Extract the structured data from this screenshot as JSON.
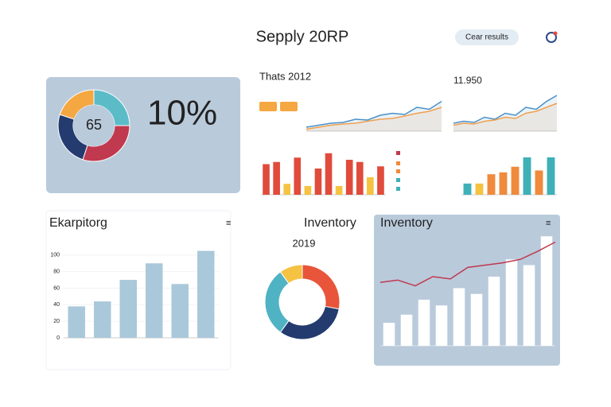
{
  "header": {
    "title": "Sepply 20RP",
    "button": "Cear results"
  },
  "chart_data": [
    {
      "type": "pie",
      "center_label": "65",
      "headline": "10%",
      "values": [
        25,
        30,
        25,
        20
      ],
      "colors": [
        "#5bbcc8",
        "#c0394f",
        "#233b6e",
        "#f5a742"
      ]
    },
    {
      "type": "line",
      "title": "Thats 2012",
      "ylim": [
        0,
        100
      ],
      "series": [
        {
          "color": "#4a90c8",
          "values": [
            10,
            15,
            20,
            22,
            30,
            28,
            40,
            45,
            42,
            60,
            55,
            75
          ]
        },
        {
          "color": "#f0a050",
          "values": [
            5,
            10,
            15,
            18,
            20,
            25,
            30,
            32,
            38,
            45,
            50,
            60
          ]
        }
      ]
    },
    {
      "type": "line",
      "title": "11.950",
      "ylim": [
        0,
        100
      ],
      "series": [
        {
          "color": "#4a90c8",
          "values": [
            20,
            25,
            22,
            35,
            30,
            45,
            40,
            60,
            55,
            75,
            90
          ]
        },
        {
          "color": "#f0a050",
          "values": [
            15,
            20,
            18,
            25,
            28,
            35,
            32,
            45,
            50,
            60,
            70
          ]
        }
      ]
    },
    {
      "type": "bar",
      "ylim": [
        0,
        100
      ],
      "values": [
        70,
        75,
        25,
        85,
        20,
        60,
        95,
        20,
        80,
        75,
        40,
        65
      ],
      "colors": [
        "#e04b3c",
        "#e04b3c",
        "#f5c242",
        "#e04b3c",
        "#f5c242",
        "#e04b3c",
        "#e04b3c",
        "#f5c242",
        "#e04b3c",
        "#e04b3c",
        "#f5c242",
        "#e04b3c"
      ]
    },
    {
      "type": "bar",
      "ylim": [
        0,
        100
      ],
      "values": [
        30,
        30,
        55,
        60,
        75,
        100,
        65,
        100
      ],
      "colors": [
        "#3fb0b8",
        "#f5c242",
        "#f08a3c",
        "#f08a3c",
        "#f08a3c",
        "#3fb0b8",
        "#f08a3c",
        "#3fb0b8"
      ]
    },
    {
      "type": "bar",
      "title": "Ekarpitorg",
      "ylim": [
        0,
        120
      ],
      "yticks": [
        0,
        20,
        40,
        60,
        80,
        100
      ],
      "values": [
        38,
        44,
        70,
        90,
        65,
        105
      ],
      "color": "#a9c8da"
    },
    {
      "type": "pie",
      "title": "Inventory",
      "subtitle": "2019",
      "values": [
        28,
        32,
        30,
        10
      ],
      "colors": [
        "#e8553a",
        "#233b6e",
        "#4fb3c4",
        "#f5c242"
      ]
    },
    {
      "type": "bar",
      "title": "Inventory",
      "ylim": [
        0,
        100
      ],
      "values": [
        20,
        27,
        40,
        35,
        50,
        45,
        60,
        75,
        70,
        95
      ],
      "color": "#ffffff",
      "line": {
        "color": "#c0394f",
        "values": [
          55,
          57,
          52,
          60,
          58,
          68,
          70,
          72,
          75,
          82,
          90
        ]
      }
    }
  ]
}
